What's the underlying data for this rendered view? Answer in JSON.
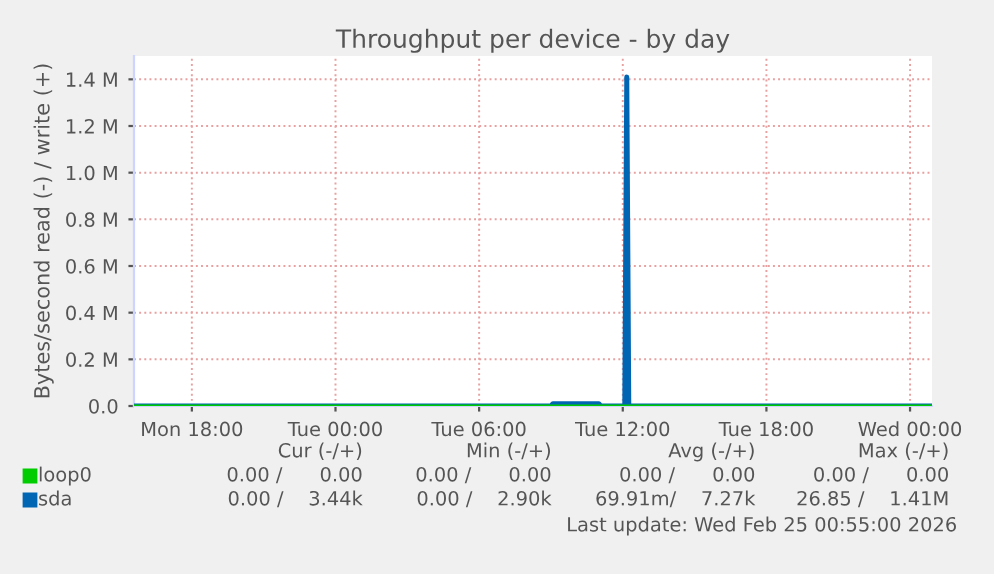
{
  "chart_data": {
    "type": "line",
    "title": "Throughput per device - by day",
    "ylabel": "Bytes/second read (-) / write (+)",
    "xlim": [
      "2026-02-23T15:35",
      "2026-02-25T00:55"
    ],
    "xticks": [
      {
        "value": "2026-02-23T18:00",
        "label": "Mon 18:00"
      },
      {
        "value": "2026-02-24T00:00",
        "label": "Tue 00:00"
      },
      {
        "value": "2026-02-24T06:00",
        "label": "Tue 06:00"
      },
      {
        "value": "2026-02-24T12:00",
        "label": "Tue 12:00"
      },
      {
        "value": "2026-02-24T18:00",
        "label": "Tue 18:00"
      },
      {
        "value": "2026-02-25T00:00",
        "label": "Wed 00:00"
      }
    ],
    "ylim": [
      0,
      1500000
    ],
    "yticks": [
      {
        "value": 0,
        "label": "0.0"
      },
      {
        "value": 200000,
        "label": "0.2 M"
      },
      {
        "value": 400000,
        "label": "0.4 M"
      },
      {
        "value": 600000,
        "label": "0.6 M"
      },
      {
        "value": 800000,
        "label": "0.8 M"
      },
      {
        "value": 1000000,
        "label": "1.0 M"
      },
      {
        "value": 1200000,
        "label": "1.2 M"
      },
      {
        "value": 1400000,
        "label": "1.4 M"
      }
    ],
    "grid": true,
    "legend": "bottom left",
    "series": [
      {
        "name": "loop0",
        "color": "#00cc00",
        "x": [
          "2026-02-23T15:35",
          "2026-02-25T00:55"
        ],
        "values": [
          0,
          0
        ]
      },
      {
        "name": "sda",
        "color": "#0066b3",
        "x": [
          "2026-02-23T15:35",
          "2026-02-24T09:00",
          "2026-02-24T09:05",
          "2026-02-24T11:00",
          "2026-02-24T11:05",
          "2026-02-24T12:05",
          "2026-02-24T12:10",
          "2026-02-24T12:15",
          "2026-02-25T00:55"
        ],
        "values": [
          0,
          0,
          10000,
          10000,
          0,
          0,
          1410000,
          0,
          0
        ]
      }
    ],
    "annotations": [
      "Cur (-/+)",
      "Min (-/+)",
      "Avg (-/+)",
      "Max (-/+)",
      "0.00 /      0.00",
      "0.00 /      0.00",
      "0.00 /      0.00",
      "0.00 /      0.00",
      "0.00 /    3.44k",
      "0.00 /    2.90k",
      "69.91m/    7.27k",
      "26.85 /    1.41M",
      "Last update: Wed Feb 25 00:55:00 2026"
    ]
  }
}
